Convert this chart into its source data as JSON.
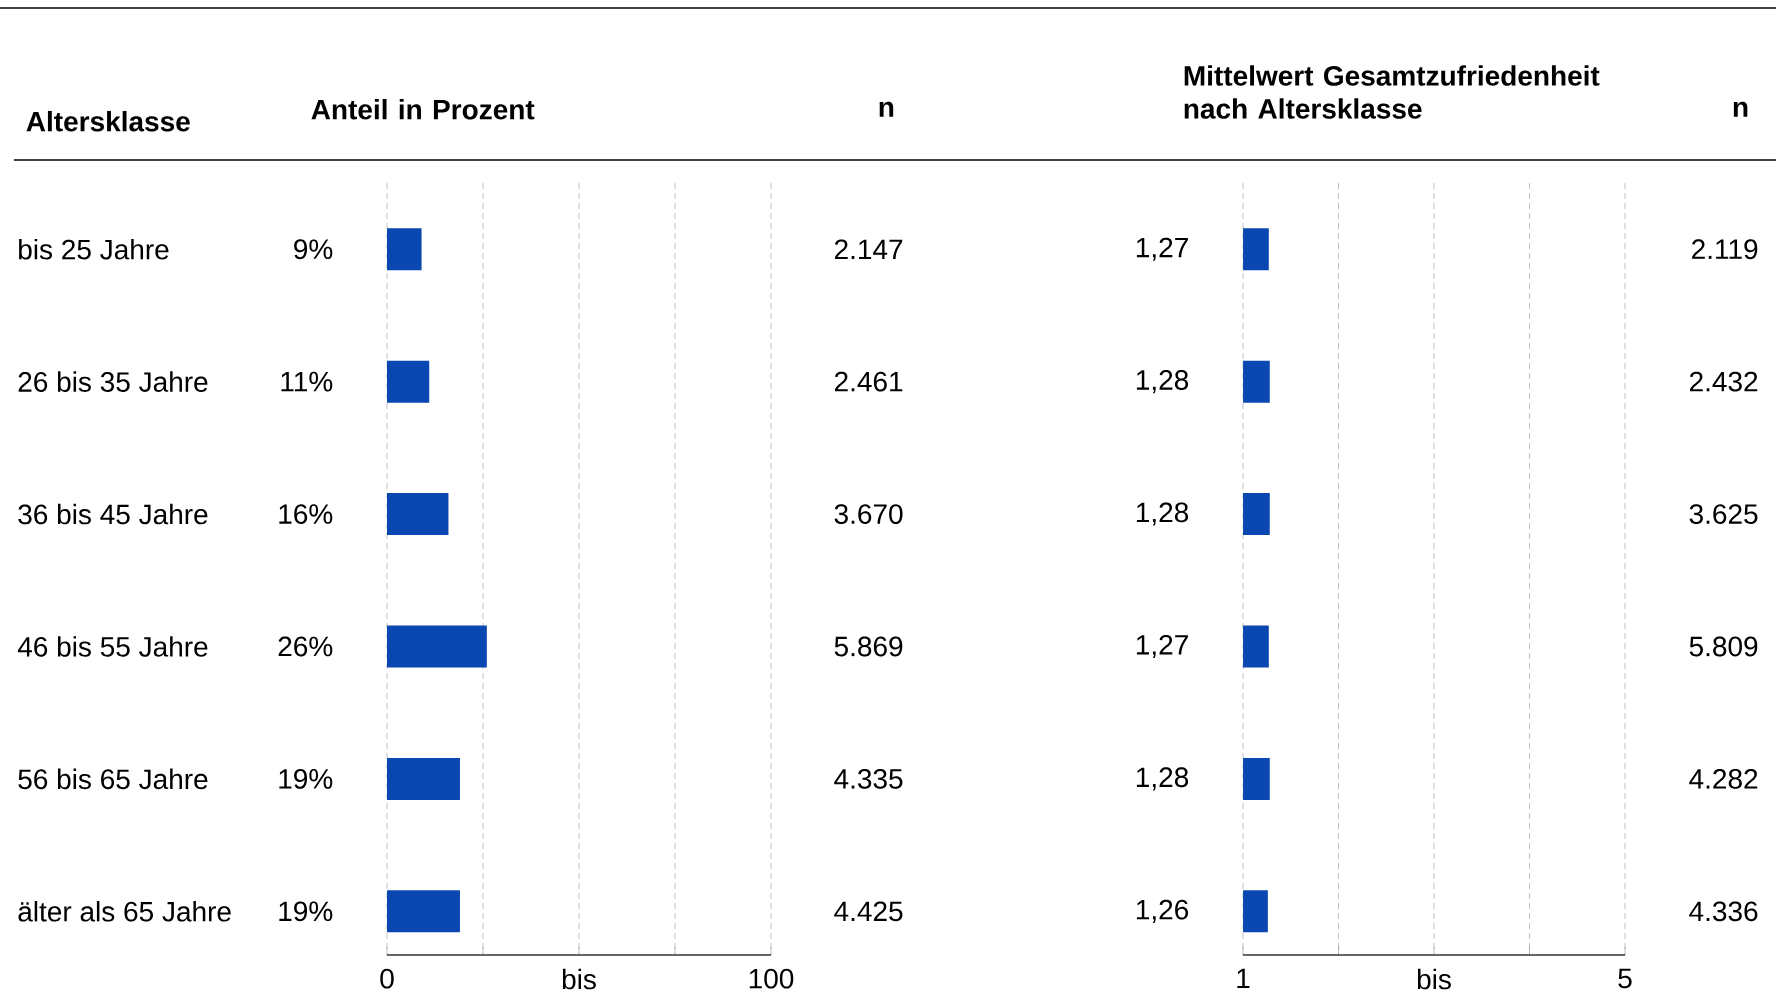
{
  "chart_data": [
    {
      "type": "bar",
      "orientation": "horizontal",
      "title": "Anteil in Prozent",
      "ylabel": "Altersklasse",
      "categories": [
        "bis 25 Jahre",
        "26 bis 35 Jahre",
        "36 bis 45 Jahre",
        "46 bis 55 Jahre",
        "56 bis 65 Jahre",
        "älter als 65 Jahre"
      ],
      "values": [
        9,
        11,
        16,
        26,
        19,
        19
      ],
      "value_labels": [
        "9%",
        "11%",
        "16%",
        "26%",
        "19%",
        "19%"
      ],
      "color": "#0a47b0",
      "xlim": [
        0,
        100
      ],
      "xticks": [
        {
          "value": 0,
          "label": "0"
        },
        {
          "value": 25,
          "label": null
        },
        {
          "value": 50,
          "label": "bis"
        },
        {
          "value": 75,
          "label": null
        },
        {
          "value": 100,
          "label": "100"
        }
      ],
      "grid": "x"
    },
    {
      "type": "other",
      "title": "n",
      "value_labels": [
        "2.147",
        "2.461",
        "3.670",
        "5.869",
        "4.335",
        "4.425"
      ]
    },
    {
      "type": "bar",
      "orientation": "horizontal",
      "title": "Mittelwert Gesamtzufriedenheit nach Altersklasse",
      "values": [
        1.27,
        1.28,
        1.28,
        1.27,
        1.28,
        1.26
      ],
      "value_labels": [
        "1,27",
        "1,28",
        "1,28",
        "1,27",
        "1,28",
        "1,26"
      ],
      "color": "#0a47b0",
      "xlim": [
        1,
        5
      ],
      "xticks": [
        {
          "value": 1,
          "label": "1"
        },
        {
          "value": 2,
          "label": null
        },
        {
          "value": 3,
          "label": "bis"
        },
        {
          "value": 4,
          "label": null
        },
        {
          "value": 5,
          "label": "5"
        }
      ],
      "grid": "x",
      "tick_labels": "x"
    },
    {
      "type": "other",
      "title": "n",
      "value_labels": [
        "2.119",
        "2.432",
        "3.625",
        "5.809",
        "4.282",
        "4.336"
      ]
    }
  ]
}
